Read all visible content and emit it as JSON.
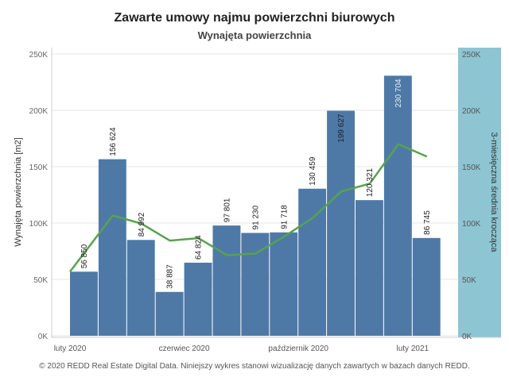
{
  "chart_data": {
    "type": "bar",
    "title": "Zawarte umowy najmu powierzchni biurowych",
    "subtitle": "Wynajęta powierzchnia",
    "ylabel": "Wynajęta powierzchnia [m2]",
    "y2label": "3-miesięczna średnia krocząca",
    "ylim": [
      0,
      250000
    ],
    "y2lim": [
      0,
      250000
    ],
    "yticks": [
      "0K",
      "50K",
      "100K",
      "150K",
      "200K",
      "250K"
    ],
    "y2ticks": [
      "0K",
      "50K",
      "100K",
      "150K",
      "200K",
      "250K"
    ],
    "xtick_labels": [
      {
        "label": "luty 2020",
        "index": 0
      },
      {
        "label": "czerwiec 2020",
        "index": 4
      },
      {
        "label": "październik 2020",
        "index": 8
      },
      {
        "label": "luty 2021",
        "index": 12
      }
    ],
    "values": [
      56850,
      156624,
      84992,
      38887,
      64824,
      97801,
      91230,
      91718,
      130459,
      199627,
      120321,
      230704,
      86745
    ],
    "value_labels": [
      "56 850",
      "156 624",
      "84 992",
      "38 887",
      "64 824",
      "97 801",
      "91 230",
      "91 718",
      "130 459",
      "199 627",
      "120 321",
      "230 704",
      "86 745"
    ],
    "series": [
      {
        "name": "",
        "type": "bar",
        "values": [
          56850,
          156624,
          84992,
          38887,
          64824,
          97801,
          91230,
          91718,
          130459,
          199627,
          120321,
          230704,
          86745
        ]
      },
      {
        "name": "",
        "type": "line",
        "values": [
          56850,
          106700,
          99500,
          84400,
          86600,
          71500,
          73000,
          88000,
          104500,
          128000,
          135000,
          170000,
          159000
        ]
      }
    ],
    "grid": true,
    "colors": {
      "bar": "#4e79a7",
      "line": "#59a14f",
      "right_axis_bg": "#8ec5d3"
    }
  },
  "footer": "© 2020 REDD Real Estate Digital Data. Niniejszy wykres stanowi wizualizację danych zawartych w bazach danych REDD."
}
